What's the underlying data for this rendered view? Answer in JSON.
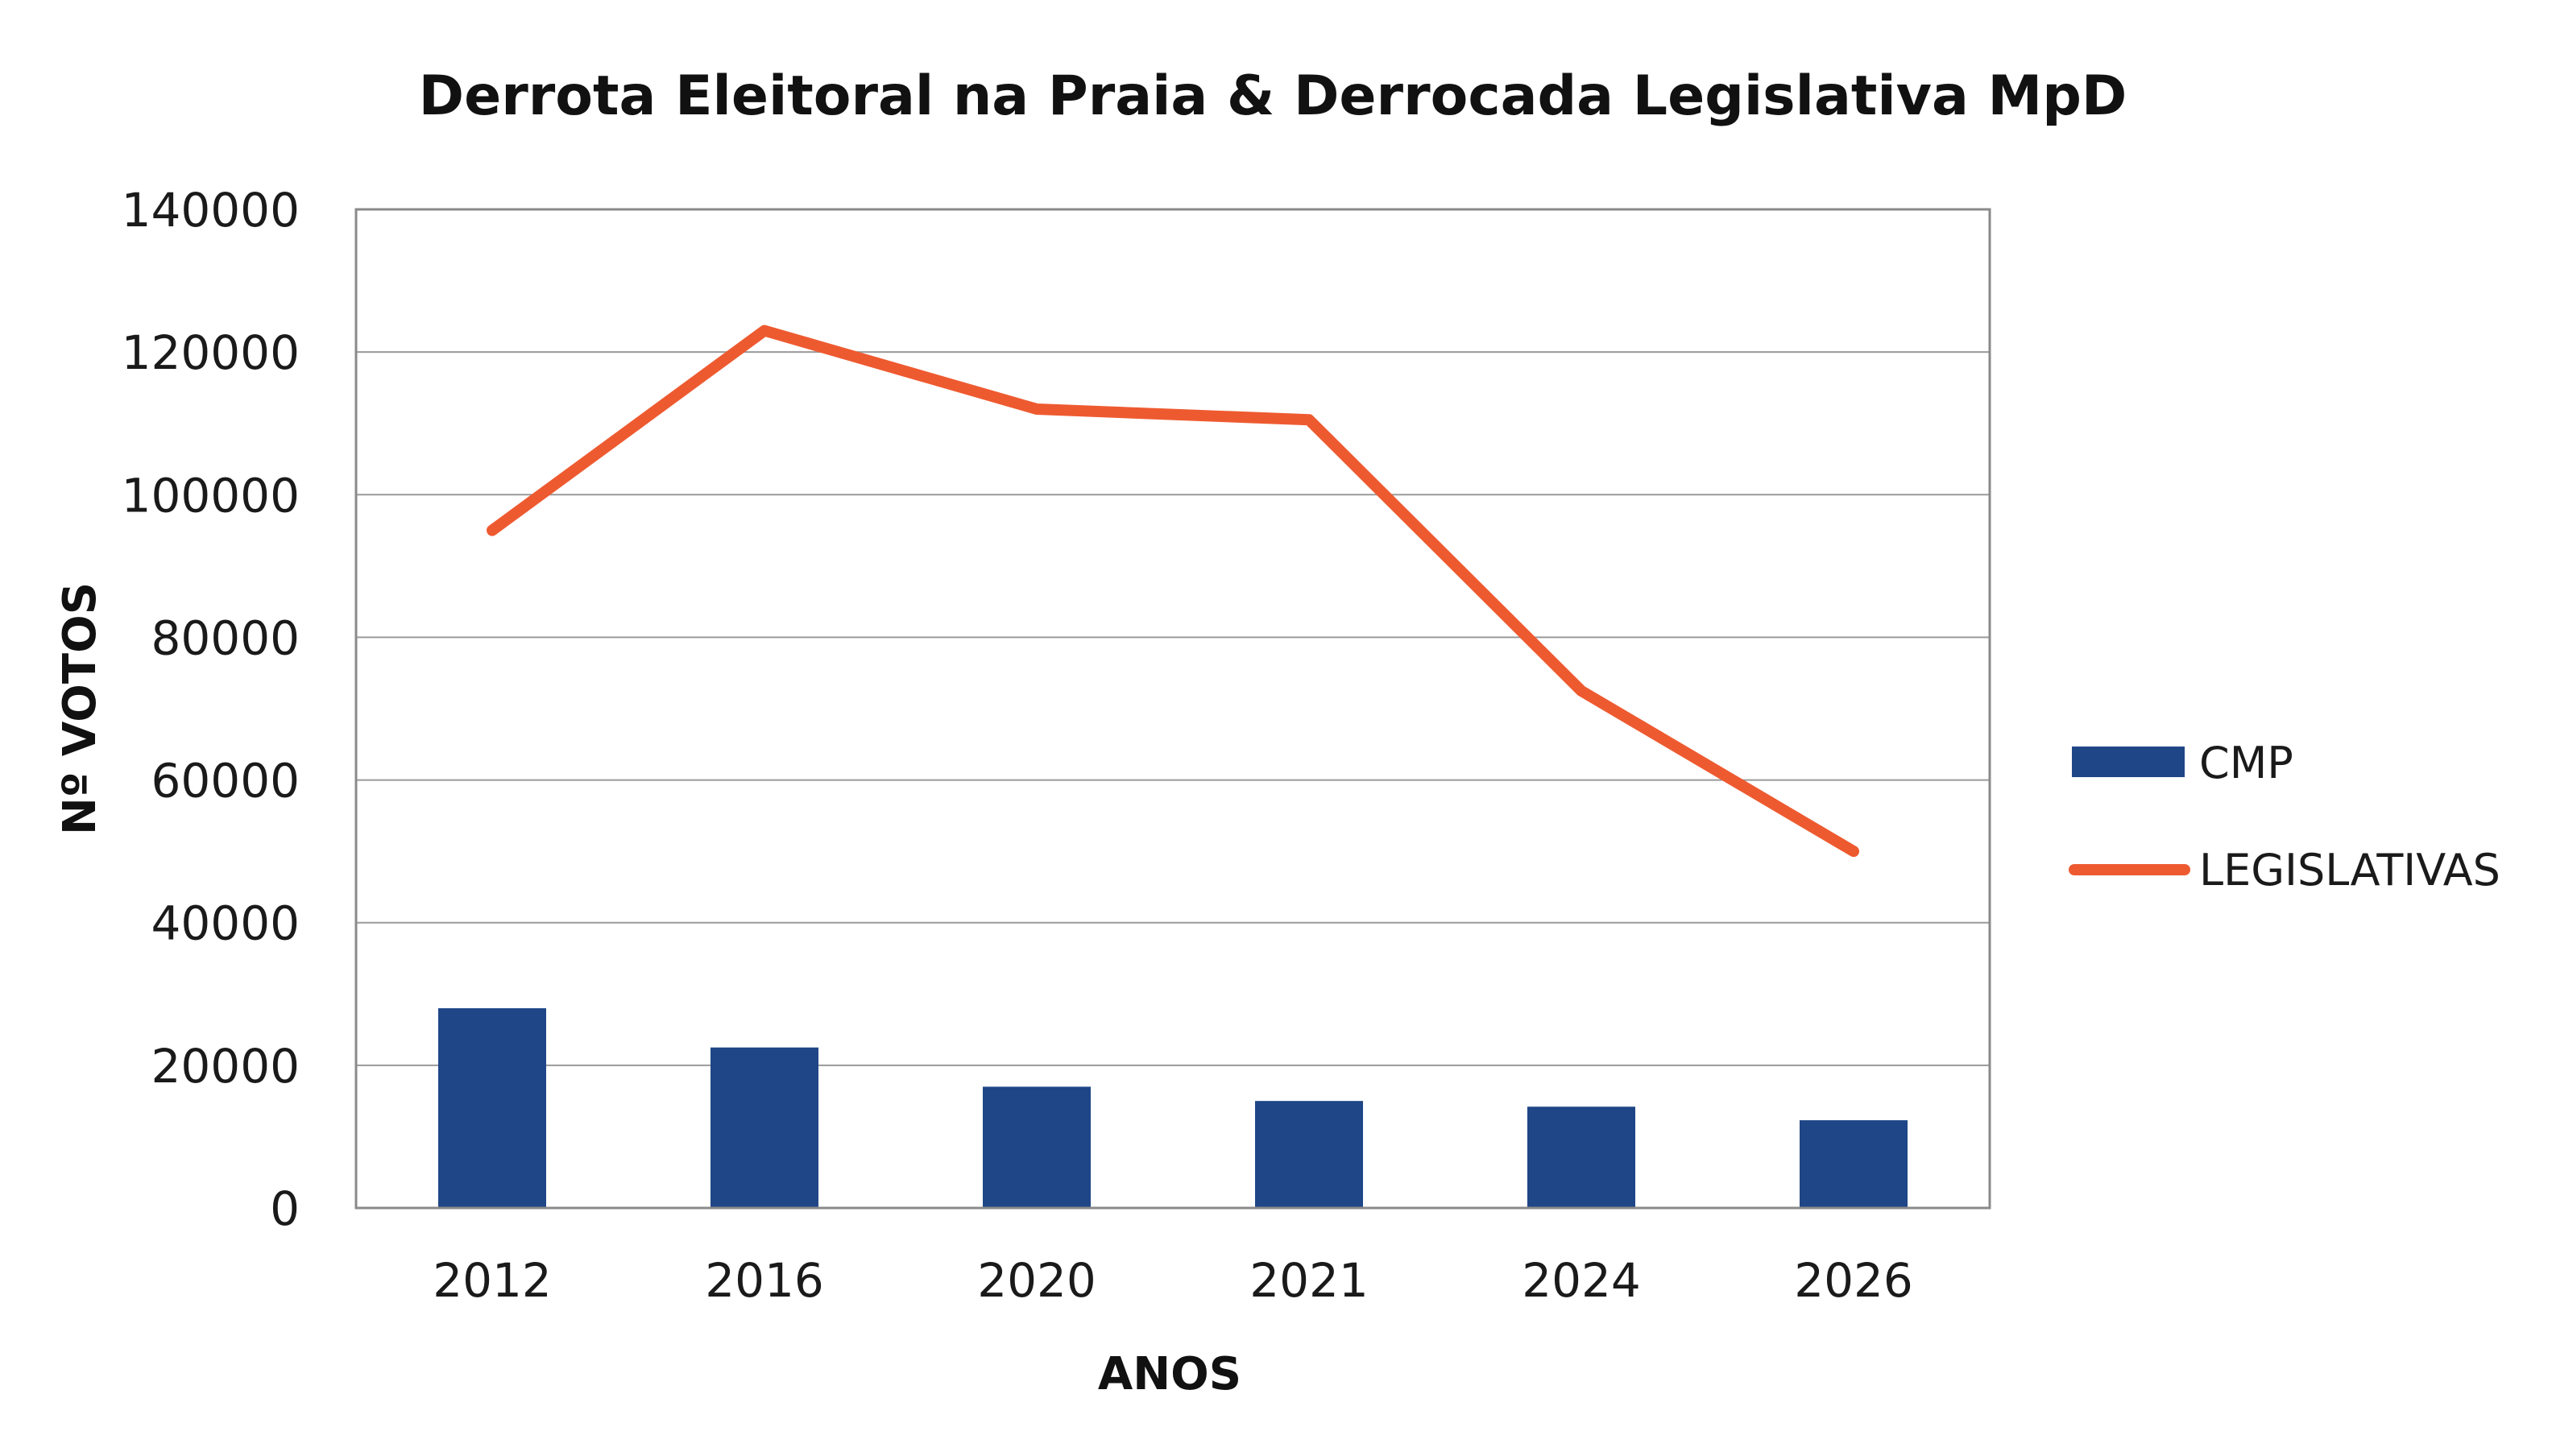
{
  "chart_data": {
    "type": "bar",
    "title": "Derrota Eleitoral na Praia & Derrocada Legislativa MpD",
    "xlabel": "ANOS",
    "ylabel": "Nº VOTOS",
    "categories": [
      "2012",
      "2016",
      "2020",
      "2021",
      "2024",
      "2026"
    ],
    "ylim": [
      0,
      140000
    ],
    "yticks": [
      0,
      20000,
      40000,
      60000,
      80000,
      100000,
      120000,
      140000
    ],
    "ytick_labels": [
      "0",
      "20000",
      "40000",
      "60000",
      "80000",
      "100000",
      "120000",
      "140000"
    ],
    "grid": true,
    "legend_position": "right",
    "series": [
      {
        "name": "CMP",
        "kind": "bar",
        "color": "#1f4687",
        "values": [
          28000,
          22500,
          17000,
          15000,
          14200,
          12300
        ]
      },
      {
        "name": "LEGISLATIVAS",
        "kind": "line",
        "color": "#ee5a30",
        "values": [
          95000,
          123000,
          112000,
          110500,
          72500,
          50000
        ]
      }
    ]
  }
}
